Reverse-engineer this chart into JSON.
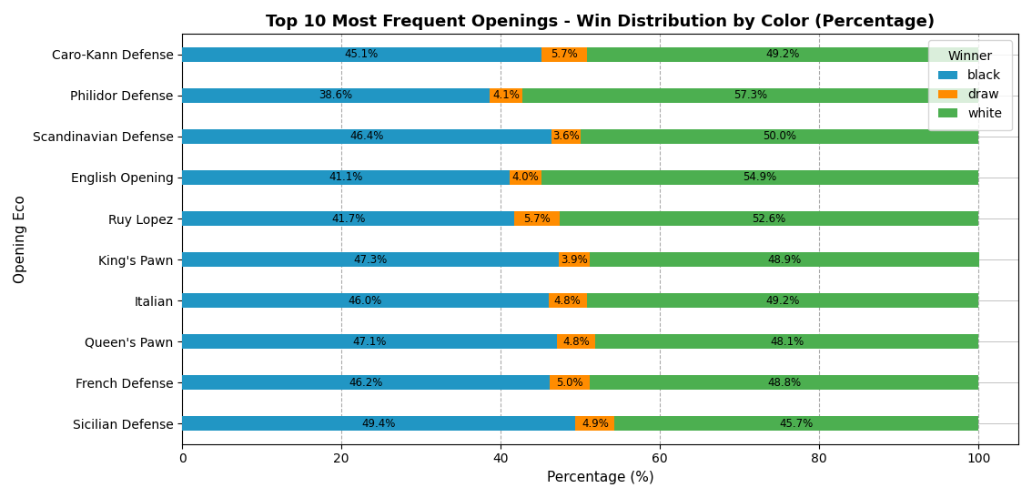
{
  "title": "Top 10 Most Frequent Openings - Win Distribution by Color (Percentage)",
  "xlabel": "Percentage (%)",
  "ylabel": "Opening Eco",
  "legend_title": "Winner",
  "openings": [
    "Sicilian Defense",
    "French Defense",
    "Queen's Pawn",
    "Italian",
    "King's Pawn",
    "Ruy Lopez",
    "English Opening",
    "Scandinavian Defense",
    "Philidor Defense",
    "Caro-Kann Defense"
  ],
  "black": [
    49.4,
    46.2,
    47.1,
    46.0,
    47.3,
    41.7,
    41.1,
    46.4,
    38.6,
    45.1
  ],
  "draw": [
    4.9,
    5.0,
    4.8,
    4.8,
    3.9,
    5.7,
    4.0,
    3.6,
    4.1,
    5.7
  ],
  "white": [
    45.7,
    48.8,
    48.1,
    49.2,
    48.9,
    52.6,
    54.9,
    50.0,
    57.3,
    49.2
  ],
  "colors": {
    "black": "#2196C4",
    "draw": "#FF8C00",
    "white": "#4CAF50"
  },
  "xlim": [
    0,
    105
  ],
  "bar_height": 0.35,
  "figsize": [
    11.34,
    5.47
  ],
  "dpi": 100,
  "label_fontsize": 8.5,
  "title_fontsize": 13,
  "grid_color": "#aaaaaa",
  "label_text_color": "black"
}
